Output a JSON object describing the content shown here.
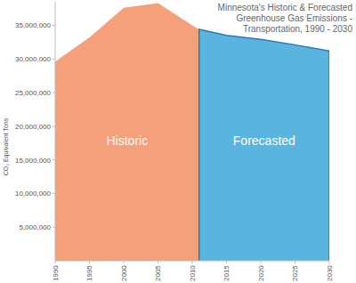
{
  "chart_data": {
    "type": "area",
    "title": "Minnesota's Historic & Forecasted Greenhouse Gas Emissions - Transportation, 1990 - 2030",
    "y_label": "CO₂ Equivalent Tons",
    "x": [
      1990,
      1995,
      2000,
      2005,
      2010,
      2011,
      2015,
      2020,
      2025,
      2030
    ],
    "series": [
      {
        "name": "Historic",
        "color": "#f4a07a",
        "values": [
          29600000,
          33200000,
          37600000,
          38300000,
          35000000,
          34400000,
          null,
          null,
          null,
          null
        ]
      },
      {
        "name": "Forecasted",
        "color": "#5ab4e0",
        "values": [
          null,
          null,
          null,
          null,
          null,
          34400000,
          33500000,
          32900000,
          32100000,
          31200000
        ]
      }
    ],
    "xlim": [
      1990,
      2030
    ],
    "xticks": [
      1990,
      1995,
      2000,
      2005,
      2010,
      2015,
      2020,
      2025,
      2030
    ],
    "ylim": [
      0,
      38500000
    ],
    "yticks": [
      {
        "value": 5000000,
        "label": "5,000,000"
      },
      {
        "value": 10000000,
        "label": "10,000,000"
      },
      {
        "value": 15000000,
        "label": "15,000,000"
      },
      {
        "value": 20000000,
        "label": "20,000,000"
      },
      {
        "value": 25000000,
        "label": "25,000,000"
      },
      {
        "value": 30000000,
        "label": "30,000,000"
      },
      {
        "value": 35000000,
        "label": "35,000,000"
      }
    ],
    "grid": false
  }
}
